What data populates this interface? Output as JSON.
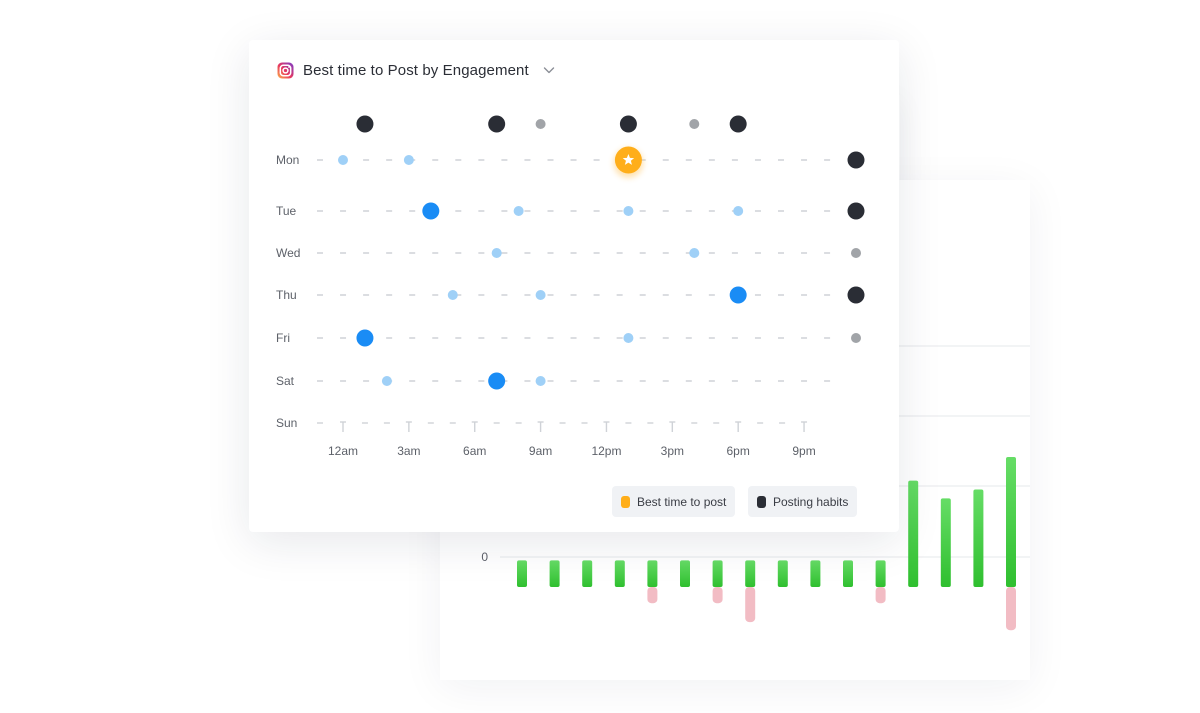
{
  "header": {
    "title": "Best time to Post by Engagement",
    "icon": "instagram-icon"
  },
  "legend": {
    "best": {
      "label": "Best time to post",
      "color": "#ffae1a"
    },
    "habits": {
      "label": "Posting habits",
      "color": "#2a2d35"
    }
  },
  "colors": {
    "engagement_high": "#1a8cf5",
    "engagement_low": "#9fd0f7",
    "habit_strong": "#2a2d35",
    "habit_weak": "#a1a4a8",
    "best": "#ffae1a",
    "bar_positive": "#3dcc3d",
    "bar_negative": "#f2bcc4"
  },
  "chart_data": [
    {
      "type": "scatter",
      "title": "Best time to Post by Engagement",
      "days": [
        "Mon",
        "Tue",
        "Wed",
        "Thu",
        "Fri",
        "Sat",
        "Sun"
      ],
      "x_ticks": [
        "12am",
        "3am",
        "6am",
        "9am",
        "12pm",
        "3pm",
        "6pm",
        "9pm"
      ],
      "x_tick_hours": [
        0,
        3,
        6,
        9,
        12,
        15,
        18,
        21
      ],
      "x_range": [
        0,
        22
      ],
      "best_time": {
        "day": "Mon",
        "hour": 13
      },
      "engagement": [
        {
          "day": "Mon",
          "hour": 0,
          "level": "low"
        },
        {
          "day": "Mon",
          "hour": 3,
          "level": "low"
        },
        {
          "day": "Tue",
          "hour": 4,
          "level": "high"
        },
        {
          "day": "Tue",
          "hour": 8,
          "level": "low"
        },
        {
          "day": "Tue",
          "hour": 13,
          "level": "low"
        },
        {
          "day": "Tue",
          "hour": 18,
          "level": "low"
        },
        {
          "day": "Wed",
          "hour": 7,
          "level": "low"
        },
        {
          "day": "Wed",
          "hour": 16,
          "level": "low"
        },
        {
          "day": "Thu",
          "hour": 5,
          "level": "low"
        },
        {
          "day": "Thu",
          "hour": 9,
          "level": "low"
        },
        {
          "day": "Thu",
          "hour": 18,
          "level": "high"
        },
        {
          "day": "Fri",
          "hour": 1,
          "level": "high"
        },
        {
          "day": "Fri",
          "hour": 13,
          "level": "low"
        },
        {
          "day": "Sat",
          "hour": 2,
          "level": "low"
        },
        {
          "day": "Sat",
          "hour": 7,
          "level": "high"
        },
        {
          "day": "Sat",
          "hour": 9,
          "level": "low"
        }
      ],
      "posting_habits_by_hour": [
        {
          "hour": 1,
          "level": "strong"
        },
        {
          "hour": 7,
          "level": "strong"
        },
        {
          "hour": 9,
          "level": "weak"
        },
        {
          "hour": 13,
          "level": "strong"
        },
        {
          "hour": 16,
          "level": "weak"
        },
        {
          "hour": 18,
          "level": "strong"
        }
      ],
      "posting_habits_by_day": [
        {
          "day": "Mon",
          "level": "strong"
        },
        {
          "day": "Tue",
          "level": "strong"
        },
        {
          "day": "Wed",
          "level": "weak"
        },
        {
          "day": "Thu",
          "level": "strong"
        },
        {
          "day": "Fri",
          "level": "weak"
        }
      ]
    },
    {
      "type": "bar",
      "y_tick_labels": [
        "0"
      ],
      "ylim": [
        -1.7,
        3.6
      ],
      "positive": [
        0.9,
        0.9,
        0.9,
        0.9,
        0.9,
        0.9,
        0.9,
        0.9,
        0.9,
        0.9,
        0.9,
        0.9,
        3.6,
        3.0,
        3.3,
        4.4
      ],
      "negative": [
        0,
        0,
        0,
        0,
        0.6,
        0,
        0.6,
        1.3,
        0,
        0,
        0,
        0.6,
        0,
        0,
        0,
        1.6
      ]
    }
  ]
}
